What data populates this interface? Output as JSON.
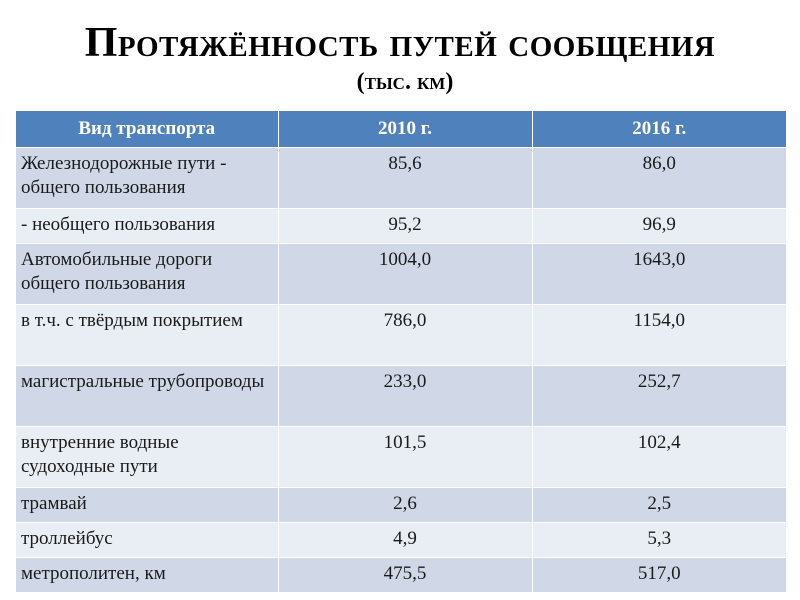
{
  "title": "Протяжённость путей сообщения",
  "subtitle": "(тыс. км)",
  "table": {
    "headers": [
      "Вид транспорта",
      "2010 г.",
      "2016 г."
    ],
    "rows": [
      {
        "label": "Железнодорожные пути - общего пользования",
        "v2010": "85,6",
        "v2016": "86,0"
      },
      {
        "label": "- необщего пользования",
        "v2010": "95,2",
        "v2016": "96,9"
      },
      {
        "label": "Автомобильные дороги общего пользования",
        "v2010": "1004,0",
        "v2016": "1643,0"
      },
      {
        "label": "в т.ч. с твёрдым покрытием",
        "v2010": "786,0",
        "v2016": "1154,0"
      },
      {
        "label": "магистральные трубопроводы",
        "v2010": "233,0",
        "v2016": "252,7"
      },
      {
        "label": "внутренние водные судоходные пути",
        "v2010": "101,5",
        "v2016": "102,4"
      },
      {
        "label": "трамвай",
        "v2010": "2,6",
        "v2016": "2,5"
      },
      {
        "label": "троллейбус",
        "v2010": "4,9",
        "v2016": "5,3"
      },
      {
        "label": "метрополитен, км",
        "v2010": "475,5",
        "v2016": "517,0"
      }
    ]
  },
  "colors": {
    "header_bg": "#4f81bd",
    "row_odd": "#d0d8e8",
    "row_even": "#e9edf4"
  }
}
